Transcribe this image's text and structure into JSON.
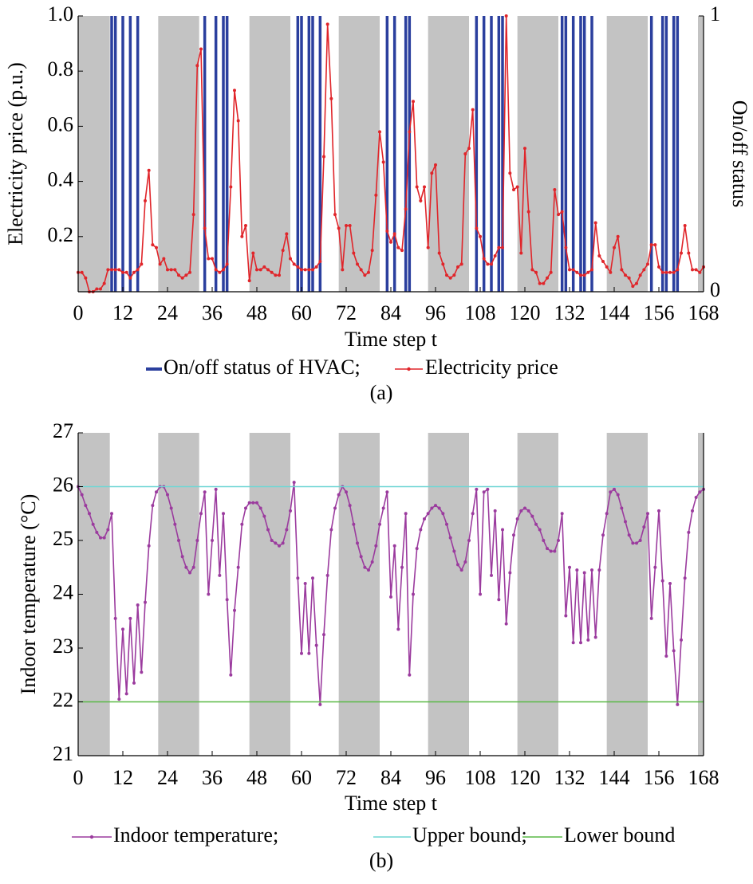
{
  "chart_data": [
    {
      "type": "line",
      "y_label": "Electricity price (p.u.)",
      "y2_label": "On/off status",
      "x_label": "Time step t",
      "caption": "(a)",
      "xlim": [
        0,
        168
      ],
      "xticks": [
        0,
        12,
        24,
        36,
        48,
        60,
        72,
        84,
        96,
        108,
        120,
        132,
        144,
        156,
        168
      ],
      "ylim": [
        0,
        1
      ],
      "yticks": [
        0.2,
        0.4,
        0.6,
        0.8,
        {
          "value": 1,
          "label": "1.0"
        }
      ],
      "y2lim": [
        0,
        1
      ],
      "y2ticks": [
        0,
        1
      ],
      "shaded": [
        [
          0,
          8.5
        ],
        [
          21.5,
          32.5
        ],
        [
          46,
          57
        ],
        [
          70,
          81
        ],
        [
          94,
          105
        ],
        [
          118,
          129
        ],
        [
          142,
          153
        ],
        [
          166.5,
          168
        ]
      ],
      "shade_color": "#c3c3c3",
      "x": [
        0,
        1,
        2,
        3,
        4,
        5,
        6,
        7,
        8,
        9,
        10,
        11,
        12,
        13,
        14,
        15,
        16,
        17,
        18,
        19,
        20,
        21,
        22,
        23,
        24,
        25,
        26,
        27,
        28,
        29,
        30,
        31,
        32,
        33,
        34,
        35,
        36,
        37,
        38,
        39,
        40,
        41,
        42,
        43,
        44,
        45,
        46,
        47,
        48,
        49,
        50,
        51,
        52,
        53,
        54,
        55,
        56,
        57,
        58,
        59,
        60,
        61,
        62,
        63,
        64,
        65,
        66,
        67,
        68,
        69,
        70,
        71,
        72,
        73,
        74,
        75,
        76,
        77,
        78,
        79,
        80,
        81,
        82,
        83,
        84,
        85,
        86,
        87,
        88,
        89,
        90,
        91,
        92,
        93,
        94,
        95,
        96,
        97,
        98,
        99,
        100,
        101,
        102,
        103,
        104,
        105,
        106,
        107,
        108,
        109,
        110,
        111,
        112,
        113,
        114,
        115,
        116,
        117,
        118,
        119,
        120,
        121,
        122,
        123,
        124,
        125,
        126,
        127,
        128,
        129,
        130,
        131,
        132,
        133,
        134,
        135,
        136,
        137,
        138,
        139,
        140,
        141,
        142,
        143,
        144,
        145,
        146,
        147,
        148,
        149,
        150,
        151,
        152,
        153,
        154,
        155,
        156,
        157,
        158,
        159,
        160,
        161,
        162,
        163,
        164,
        165,
        166,
        167,
        168
      ],
      "series": [
        {
          "name": "On/off status of HVAC;",
          "color": "#2b3f9e",
          "type": "stem",
          "axis": "y2",
          "values": [
            0,
            0,
            0,
            0,
            0,
            0,
            0,
            0,
            0,
            1,
            1,
            0,
            1,
            0,
            1,
            0,
            1,
            0,
            0,
            0,
            0,
            0,
            0,
            0,
            0,
            0,
            0,
            0,
            0,
            0,
            0,
            0,
            0,
            0,
            1,
            0,
            0,
            1,
            0,
            1,
            1,
            0,
            0,
            0,
            0,
            0,
            0,
            0,
            0,
            0,
            0,
            0,
            0,
            0,
            0,
            0,
            0,
            0,
            0,
            1,
            1,
            0,
            1,
            1,
            0,
            1,
            0,
            0,
            0,
            0,
            0,
            0,
            0,
            0,
            0,
            0,
            0,
            0,
            0,
            0,
            0,
            0,
            0,
            1,
            0,
            1,
            0,
            0,
            1,
            1,
            0,
            0,
            0,
            0,
            0,
            0,
            0,
            0,
            0,
            0,
            0,
            0,
            0,
            0,
            0,
            0,
            0,
            1,
            0,
            1,
            0,
            1,
            0,
            1,
            1,
            0,
            0,
            0,
            0,
            0,
            0,
            0,
            0,
            0,
            0,
            0,
            0,
            0,
            0,
            0,
            1,
            1,
            0,
            1,
            0,
            1,
            1,
            0,
            1,
            0,
            0,
            0,
            0,
            0,
            0,
            0,
            0,
            0,
            0,
            0,
            0,
            0,
            0,
            0,
            1,
            0,
            0,
            1,
            1,
            0,
            1,
            1,
            0,
            0,
            0,
            0,
            0,
            0,
            0
          ]
        },
        {
          "name": "Electricity price",
          "color": "#e0252a",
          "markers": true,
          "values": [
            0.07,
            0.07,
            0.05,
            0.0,
            0.0,
            0.01,
            0.01,
            0.03,
            0.08,
            0.08,
            0.08,
            0.08,
            0.07,
            0.07,
            0.05,
            0.07,
            0.08,
            0.1,
            0.33,
            0.44,
            0.17,
            0.16,
            0.1,
            0.12,
            0.08,
            0.08,
            0.08,
            0.06,
            0.05,
            0.06,
            0.07,
            0.28,
            0.82,
            0.88,
            0.23,
            0.12,
            0.12,
            0.08,
            0.07,
            0.08,
            0.1,
            0.38,
            0.73,
            0.62,
            0.2,
            0.24,
            0.04,
            0.14,
            0.08,
            0.08,
            0.09,
            0.08,
            0.07,
            0.06,
            0.06,
            0.15,
            0.21,
            0.12,
            0.1,
            0.09,
            0.08,
            0.08,
            0.08,
            0.08,
            0.09,
            0.11,
            0.49,
            0.97,
            0.7,
            0.28,
            0.23,
            0.08,
            0.24,
            0.24,
            0.14,
            0.1,
            0.08,
            0.06,
            0.07,
            0.15,
            0.35,
            0.58,
            0.47,
            0.22,
            0.18,
            0.21,
            0.16,
            0.15,
            0.3,
            0.58,
            0.69,
            0.38,
            0.33,
            0.38,
            0.16,
            0.43,
            0.46,
            0.14,
            0.1,
            0.06,
            0.05,
            0.06,
            0.09,
            0.1,
            0.5,
            0.52,
            0.66,
            0.23,
            0.2,
            0.12,
            0.1,
            0.1,
            0.13,
            0.16,
            0.16,
            1.0,
            0.43,
            0.37,
            0.38,
            0.14,
            0.52,
            0.29,
            0.08,
            0.07,
            0.03,
            0.03,
            0.05,
            0.07,
            0.37,
            0.28,
            0.29,
            0.16,
            0.08,
            0.08,
            0.07,
            0.06,
            0.06,
            0.07,
            0.08,
            0.25,
            0.13,
            0.11,
            0.09,
            0.07,
            0.16,
            0.2,
            0.08,
            0.06,
            0.05,
            0.02,
            0.03,
            0.06,
            0.08,
            0.1,
            0.17,
            0.17,
            0.09,
            0.07,
            0.07,
            0.07,
            0.07,
            0.08,
            0.14,
            0.24,
            0.14,
            0.08,
            0.08,
            0.07,
            0.09
          ]
        }
      ]
    },
    {
      "type": "line",
      "y_label": "Indoor temperature (°C)",
      "x_label": "Time step t",
      "caption": "(b)",
      "xlim": [
        0,
        168
      ],
      "xticks": [
        0,
        12,
        24,
        36,
        48,
        60,
        72,
        84,
        96,
        108,
        120,
        132,
        144,
        156,
        168
      ],
      "ylim": [
        21,
        27
      ],
      "yticks": [
        21,
        22,
        23,
        24,
        25,
        26,
        27
      ],
      "shaded": [
        [
          0,
          8.5
        ],
        [
          21.5,
          32.5
        ],
        [
          46,
          57
        ],
        [
          70,
          81
        ],
        [
          94,
          105
        ],
        [
          118,
          129
        ],
        [
          142,
          153
        ],
        [
          166.5,
          168
        ]
      ],
      "shade_color": "#c3c3c3",
      "x": [
        0,
        1,
        2,
        3,
        4,
        5,
        6,
        7,
        8,
        9,
        10,
        11,
        12,
        13,
        14,
        15,
        16,
        17,
        18,
        19,
        20,
        21,
        22,
        23,
        24,
        25,
        26,
        27,
        28,
        29,
        30,
        31,
        32,
        33,
        34,
        35,
        36,
        37,
        38,
        39,
        40,
        41,
        42,
        43,
        44,
        45,
        46,
        47,
        48,
        49,
        50,
        51,
        52,
        53,
        54,
        55,
        56,
        57,
        58,
        59,
        60,
        61,
        62,
        63,
        64,
        65,
        66,
        67,
        68,
        69,
        70,
        71,
        72,
        73,
        74,
        75,
        76,
        77,
        78,
        79,
        80,
        81,
        82,
        83,
        84,
        85,
        86,
        87,
        88,
        89,
        90,
        91,
        92,
        93,
        94,
        95,
        96,
        97,
        98,
        99,
        100,
        101,
        102,
        103,
        104,
        105,
        106,
        107,
        108,
        109,
        110,
        111,
        112,
        113,
        114,
        115,
        116,
        117,
        118,
        119,
        120,
        121,
        122,
        123,
        124,
        125,
        126,
        127,
        128,
        129,
        130,
        131,
        132,
        133,
        134,
        135,
        136,
        137,
        138,
        139,
        140,
        141,
        142,
        143,
        144,
        145,
        146,
        147,
        148,
        149,
        150,
        151,
        152,
        153,
        154,
        155,
        156,
        157,
        158,
        159,
        160,
        161,
        162,
        163,
        164,
        165,
        166,
        167,
        168
      ],
      "series": [
        {
          "name": "Indoor temperature;",
          "color": "#9b3b9e",
          "markers": true,
          "values": [
            26.0,
            25.85,
            25.65,
            25.5,
            25.3,
            25.15,
            25.05,
            25.05,
            25.2,
            25.5,
            23.55,
            22.05,
            23.35,
            22.15,
            23.55,
            22.35,
            23.8,
            22.55,
            23.85,
            24.9,
            25.65,
            25.9,
            26.0,
            26.0,
            25.85,
            25.6,
            25.3,
            25.0,
            24.7,
            24.5,
            24.4,
            24.5,
            25.0,
            25.5,
            25.9,
            24.0,
            25.0,
            25.95,
            24.35,
            25.5,
            23.9,
            22.5,
            23.7,
            24.5,
            25.3,
            25.6,
            25.7,
            25.7,
            25.7,
            25.6,
            25.45,
            25.2,
            25.0,
            24.95,
            24.9,
            24.95,
            25.2,
            25.55,
            26.08,
            24.3,
            22.9,
            24.2,
            22.9,
            24.3,
            23.05,
            21.95,
            23.25,
            24.35,
            25.2,
            25.6,
            25.85,
            26.0,
            25.9,
            25.65,
            25.3,
            24.95,
            24.7,
            24.5,
            24.45,
            24.6,
            24.9,
            25.3,
            25.6,
            25.9,
            23.95,
            24.9,
            23.35,
            24.5,
            25.5,
            22.5,
            24.0,
            24.85,
            25.2,
            25.4,
            25.5,
            25.6,
            25.65,
            25.6,
            25.5,
            25.3,
            25.05,
            24.8,
            24.55,
            24.45,
            24.6,
            25.0,
            25.5,
            25.95,
            24.0,
            25.9,
            25.95,
            24.35,
            25.55,
            23.9,
            25.2,
            23.45,
            24.4,
            25.1,
            25.4,
            25.55,
            25.6,
            25.55,
            25.45,
            25.3,
            25.2,
            25.0,
            24.85,
            24.8,
            24.8,
            25.0,
            25.5,
            23.6,
            24.5,
            23.1,
            24.45,
            23.1,
            24.4,
            23.15,
            24.45,
            23.2,
            24.45,
            25.1,
            25.5,
            25.9,
            25.95,
            25.85,
            25.6,
            25.35,
            25.1,
            24.95,
            24.95,
            25.0,
            25.25,
            25.5,
            23.55,
            24.5,
            25.55,
            24.25,
            22.85,
            24.2,
            22.95,
            21.95,
            23.15,
            24.3,
            25.15,
            25.55,
            25.8,
            25.9,
            25.95
          ]
        },
        {
          "name": "Upper bound;",
          "color": "#6fd6d4",
          "x": [
            0,
            168
          ],
          "values": [
            26,
            26
          ]
        },
        {
          "name": "Lower bound",
          "color": "#5ab946",
          "x": [
            0,
            168
          ],
          "values": [
            22,
            22
          ]
        }
      ]
    }
  ]
}
